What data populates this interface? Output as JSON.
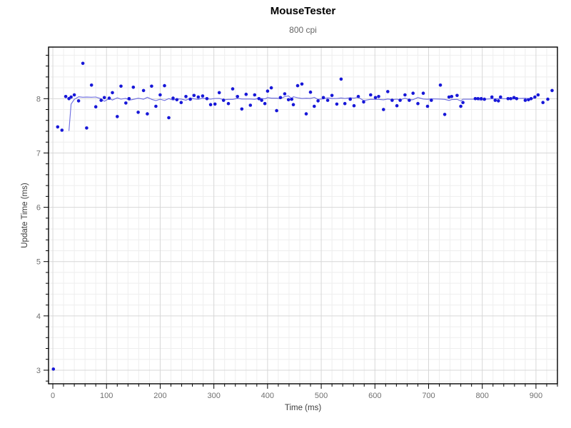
{
  "header": {
    "title": "MouseTester",
    "subtitle": "800 cpi"
  },
  "chart_data": {
    "type": "scatter",
    "title": "MouseTester",
    "subtitle": "800 cpi",
    "xlabel": "Time (ms)",
    "ylabel": "Update Time (ms)",
    "xlim": [
      -8,
      940
    ],
    "ylim": [
      2.75,
      8.95
    ],
    "x_major_ticks": [
      0,
      100,
      200,
      300,
      400,
      500,
      600,
      700,
      800,
      900
    ],
    "x_minor_step": 20,
    "y_major_ticks": [
      3,
      4,
      5,
      6,
      7,
      8
    ],
    "y_minor_step": 0.2,
    "grid": true,
    "legend": "none",
    "point_color": "#1717d8",
    "line_color": "#6b6be0",
    "grid_minor_color": "#eeeeee",
    "grid_major_color": "#d7d7d7",
    "tick_label_color": "#707070",
    "axis_title_color": "#3c3c3c",
    "border_color": "#000000",
    "series": [
      {
        "name": "update_time_samples",
        "type": "scatter",
        "color": "#1717d8",
        "points": [
          [
            1,
            3.02
          ],
          [
            9,
            7.48
          ],
          [
            17,
            7.42
          ],
          [
            24,
            8.04
          ],
          [
            30,
            8.0
          ],
          [
            34,
            8.03
          ],
          [
            40,
            8.07
          ],
          [
            48,
            7.96
          ],
          [
            56,
            8.65
          ],
          [
            63,
            7.46
          ],
          [
            72,
            8.25
          ],
          [
            80,
            7.85
          ],
          [
            90,
            7.97
          ],
          [
            96,
            8.02
          ],
          [
            105,
            8.01
          ],
          [
            111,
            8.11
          ],
          [
            120,
            7.67
          ],
          [
            127,
            8.23
          ],
          [
            136,
            7.92
          ],
          [
            142,
            8.0
          ],
          [
            150,
            8.21
          ],
          [
            159,
            7.75
          ],
          [
            169,
            8.15
          ],
          [
            176,
            7.72
          ],
          [
            184,
            8.23
          ],
          [
            192,
            7.86
          ],
          [
            200,
            8.07
          ],
          [
            208,
            8.24
          ],
          [
            216,
            7.65
          ],
          [
            224,
            8.01
          ],
          [
            231,
            7.98
          ],
          [
            239,
            7.93
          ],
          [
            248,
            8.04
          ],
          [
            256,
            7.99
          ],
          [
            263,
            8.06
          ],
          [
            271,
            8.03
          ],
          [
            279,
            8.05
          ],
          [
            287,
            8.0
          ],
          [
            294,
            7.89
          ],
          [
            302,
            7.9
          ],
          [
            310,
            8.11
          ],
          [
            318,
            7.97
          ],
          [
            327,
            7.91
          ],
          [
            335,
            8.18
          ],
          [
            344,
            8.04
          ],
          [
            352,
            7.81
          ],
          [
            360,
            8.08
          ],
          [
            368,
            7.88
          ],
          [
            376,
            8.07
          ],
          [
            384,
            8.0
          ],
          [
            389,
            7.97
          ],
          [
            395,
            7.91
          ],
          [
            400,
            8.14
          ],
          [
            407,
            8.2
          ],
          [
            417,
            7.78
          ],
          [
            424,
            8.02
          ],
          [
            432,
            8.09
          ],
          [
            439,
            7.98
          ],
          [
            445,
            7.99
          ],
          [
            448,
            7.89
          ],
          [
            456,
            8.24
          ],
          [
            464,
            8.27
          ],
          [
            472,
            7.72
          ],
          [
            480,
            8.12
          ],
          [
            487,
            7.86
          ],
          [
            494,
            7.96
          ],
          [
            504,
            8.02
          ],
          [
            512,
            7.97
          ],
          [
            520,
            8.06
          ],
          [
            529,
            7.9
          ],
          [
            537,
            8.36
          ],
          [
            544,
            7.91
          ],
          [
            554,
            7.99
          ],
          [
            561,
            7.87
          ],
          [
            569,
            8.04
          ],
          [
            579,
            7.94
          ],
          [
            592,
            8.07
          ],
          [
            601,
            8.02
          ],
          [
            607,
            8.04
          ],
          [
            616,
            7.8
          ],
          [
            624,
            8.13
          ],
          [
            632,
            7.97
          ],
          [
            641,
            7.87
          ],
          [
            647,
            7.97
          ],
          [
            656,
            8.07
          ],
          [
            664,
            7.97
          ],
          [
            671,
            8.1
          ],
          [
            680,
            7.91
          ],
          [
            690,
            8.1
          ],
          [
            698,
            7.86
          ],
          [
            705,
            7.97
          ],
          [
            722,
            8.25
          ],
          [
            730,
            7.71
          ],
          [
            738,
            8.03
          ],
          [
            743,
            8.04
          ],
          [
            753,
            8.06
          ],
          [
            760,
            7.86
          ],
          [
            764,
            7.93
          ],
          [
            787,
            8.0
          ],
          [
            792,
            8.0
          ],
          [
            798,
            8.0
          ],
          [
            804,
            7.99
          ],
          [
            818,
            8.03
          ],
          [
            824,
            7.97
          ],
          [
            830,
            7.96
          ],
          [
            834,
            8.03
          ],
          [
            848,
            8.0
          ],
          [
            853,
            8.0
          ],
          [
            859,
            8.02
          ],
          [
            864,
            8.0
          ],
          [
            880,
            7.97
          ],
          [
            886,
            7.98
          ],
          [
            891,
            8.0
          ],
          [
            898,
            8.03
          ],
          [
            904,
            8.07
          ],
          [
            913,
            7.93
          ],
          [
            922,
            7.99
          ],
          [
            930,
            8.15
          ]
        ]
      },
      {
        "name": "moving_average",
        "type": "line",
        "color": "#6b6be0",
        "derived": "rolling_mean",
        "window": 9
      }
    ]
  }
}
